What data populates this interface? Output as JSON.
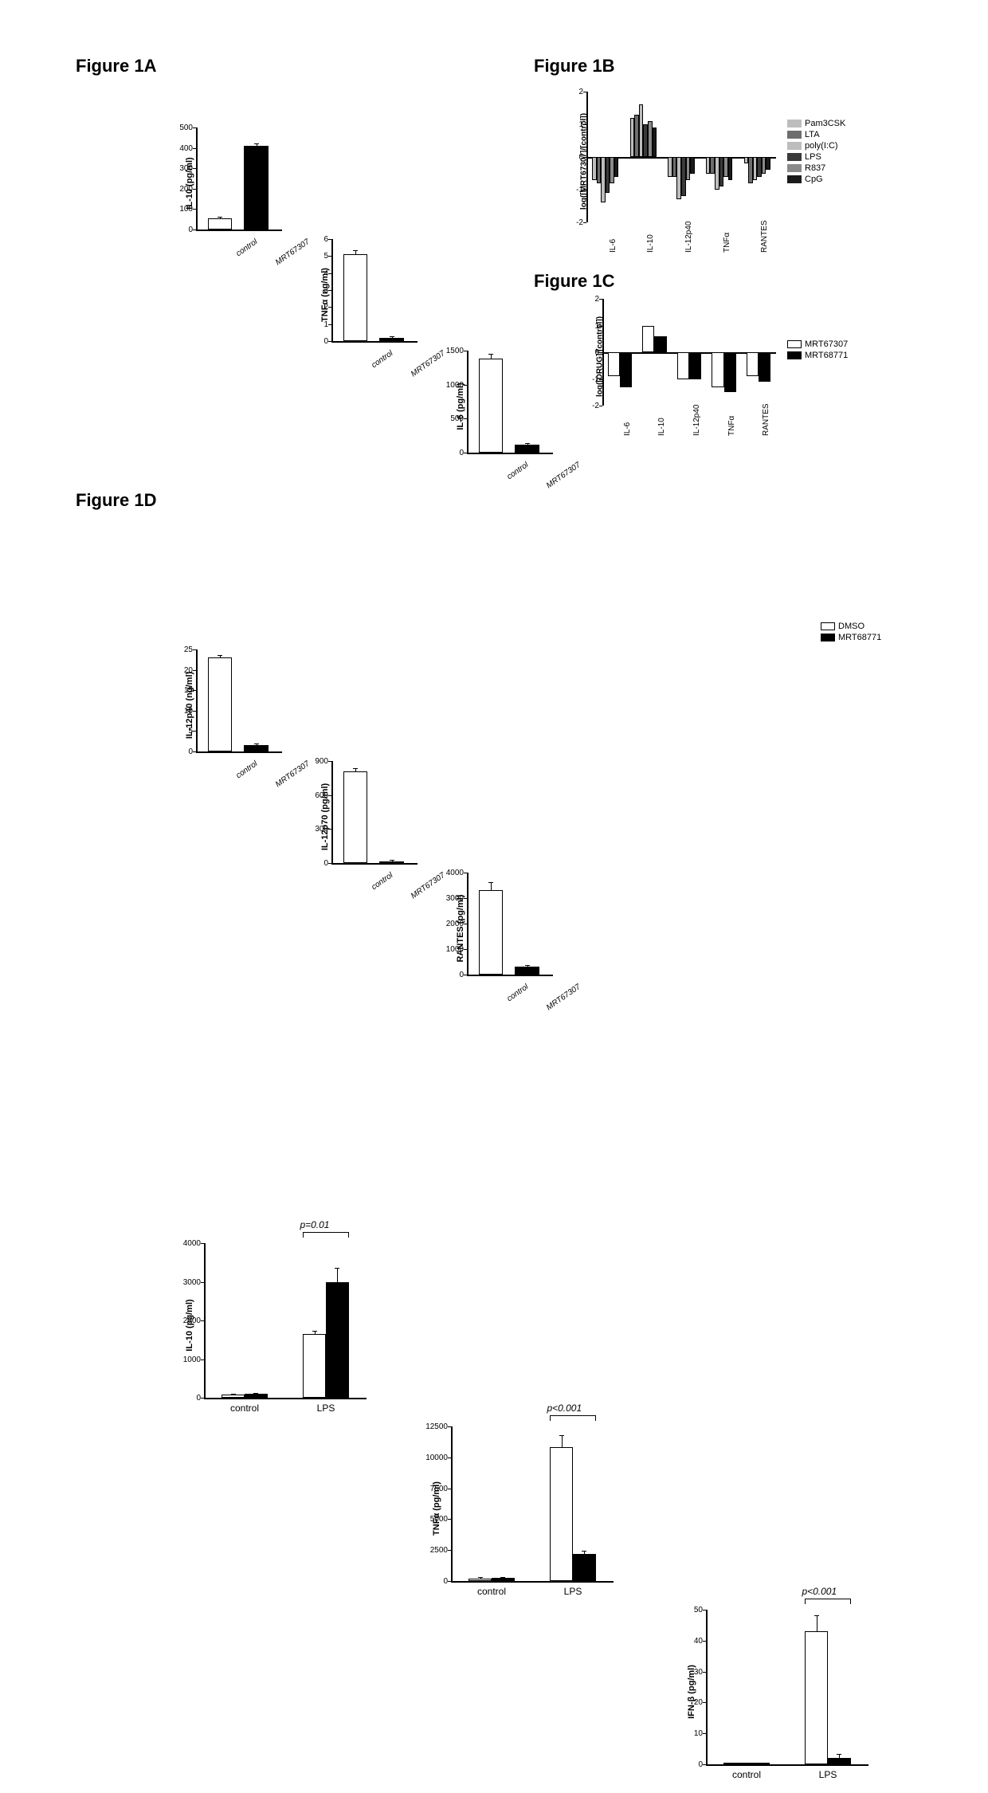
{
  "labels": {
    "fig1a": "Figure 1A",
    "fig1b": "Figure 1B",
    "fig1c": "Figure 1C",
    "fig1d": "Figure 1D"
  },
  "panelA": {
    "charts": [
      {
        "ylabel": "IL-10 (pg/ml)",
        "ymax": 500,
        "ystep": 100,
        "cats": [
          "control",
          "MRT67307"
        ],
        "vals": [
          55,
          410
        ],
        "errs": [
          5,
          8
        ]
      },
      {
        "ylabel": "TNFα (ng/ml)",
        "ymax": 6,
        "ystep": 1,
        "cats": [
          "control",
          "MRT67307"
        ],
        "vals": [
          5.1,
          0.2
        ],
        "errs": [
          0.2,
          0.05
        ]
      },
      {
        "ylabel": "IL-6 (pg/ml)",
        "ymax": 1500,
        "ystep": 500,
        "cats": [
          "control",
          "MRT67307"
        ],
        "vals": [
          1380,
          120
        ],
        "errs": [
          60,
          10
        ]
      },
      {
        "ylabel": "IL-12p40 (ng/ml)",
        "ymax": 25,
        "ystep": 5,
        "cats": [
          "control",
          "MRT67307"
        ],
        "vals": [
          23,
          1.5
        ],
        "errs": [
          0.4,
          0.2
        ]
      },
      {
        "ylabel": "IL-12p70 (pg/ml)",
        "ymax": 900,
        "ystep": 300,
        "cats": [
          "control",
          "MRT67307"
        ],
        "vals": [
          810,
          15
        ],
        "errs": [
          20,
          5
        ]
      },
      {
        "ylabel": "RANTES (pg/ml)",
        "ymax": 4000,
        "ystep": 1000,
        "cats": [
          "control",
          "MRT67307"
        ],
        "vals": [
          3300,
          300
        ],
        "errs": [
          300,
          40
        ]
      }
    ]
  },
  "panelB": {
    "ylabel": "log([MRT67307]/[control])",
    "ylim": [
      -2,
      2
    ],
    "ystep": 1,
    "xcats": [
      "IL-6",
      "IL-10",
      "IL-12p40",
      "TNFα",
      "RANTES"
    ],
    "series": [
      "Pam3CSK",
      "LTA",
      "poly(I:C)",
      "LPS",
      "R837",
      "CpG"
    ],
    "colors": [
      "#bdbdbd",
      "#6e6e6e",
      "#bdbdbd",
      "#3a3a3a",
      "#8a8a8a",
      "#1a1a1a"
    ],
    "data": [
      [
        -0.7,
        -0.8,
        -1.4,
        -1.1,
        -0.8,
        -0.6
      ],
      [
        1.2,
        1.3,
        1.6,
        1.0,
        1.1,
        0.9
      ],
      [
        -0.6,
        -0.6,
        -1.3,
        -1.2,
        -0.7,
        -0.5
      ],
      [
        -0.5,
        -0.5,
        -1.0,
        -0.9,
        -0.6,
        -0.7
      ],
      [
        -0.2,
        -0.8,
        -0.7,
        -0.6,
        -0.5,
        -0.4
      ]
    ]
  },
  "panelC": {
    "ylabel": "log([DRUG]/[control])",
    "ylim": [
      -2,
      2
    ],
    "ystep": 1,
    "xcats": [
      "IL-6",
      "IL-10",
      "IL-12p40",
      "TNFα",
      "RANTES"
    ],
    "series": [
      "MRT67307",
      "MRT68771"
    ],
    "colors": [
      "#ffffff",
      "#000000"
    ],
    "data": [
      [
        -0.9,
        -1.3
      ],
      [
        1.0,
        0.6
      ],
      [
        -1.0,
        -1.0
      ],
      [
        -1.3,
        -1.5
      ],
      [
        -0.9,
        -1.1
      ]
    ]
  },
  "panelD": {
    "legend": [
      "DMSO",
      "MRT68771"
    ],
    "legend_colors": [
      "#ffffff",
      "#000000"
    ],
    "charts": [
      {
        "ylabel": "IL-10 (pg/ml)",
        "ymax": 4000,
        "ystep": 1000,
        "groups": [
          "control",
          "LPS"
        ],
        "vals": [
          [
            80,
            100
          ],
          [
            1650,
            3000
          ]
        ],
        "errs": [
          [
            10,
            10
          ],
          [
            60,
            350
          ]
        ],
        "pval": "p=0.01"
      },
      {
        "ylabel": "TNFα (pg/ml)",
        "ymax": 12500,
        "ystep": 2500,
        "groups": [
          "control",
          "LPS"
        ],
        "vals": [
          [
            200,
            250
          ],
          [
            10800,
            2200
          ]
        ],
        "errs": [
          [
            30,
            30
          ],
          [
            900,
            200
          ]
        ],
        "pval": "p<0.001"
      },
      {
        "ylabel": "IFN-β (pg/ml)",
        "ymax": 50,
        "ystep": 10,
        "groups": [
          "control",
          "LPS"
        ],
        "vals": [
          [
            0,
            0
          ],
          [
            43,
            2
          ]
        ],
        "errs": [
          [
            0,
            0
          ],
          [
            5,
            1
          ]
        ],
        "pval": "p<0.001"
      }
    ]
  }
}
